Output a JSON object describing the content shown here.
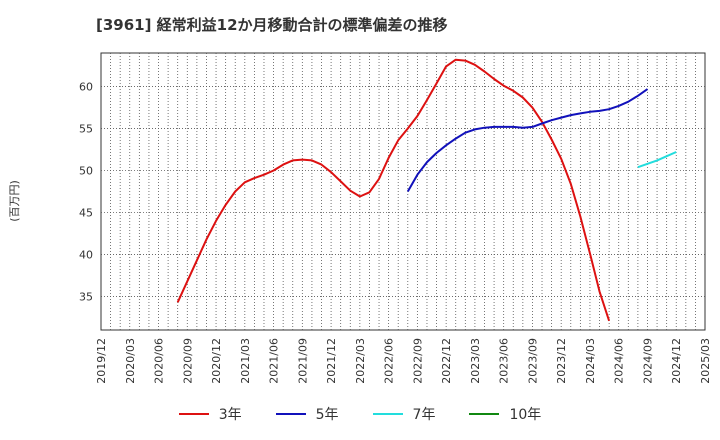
{
  "chart_data": {
    "type": "line",
    "title": "[3961]  経常利益12か月移動合計の標準偏差の推移",
    "ylabel": "(百万円)",
    "xlabel": "",
    "ylim": [
      31,
      64
    ],
    "yticks": [
      35,
      40,
      45,
      50,
      55,
      60
    ],
    "x_range": [
      "2019/12",
      "2025/03"
    ],
    "x_ticks": [
      "2019/12",
      "2020/03",
      "2020/06",
      "2020/09",
      "2020/12",
      "2021/03",
      "2021/06",
      "2021/09",
      "2021/12",
      "2022/03",
      "2022/06",
      "2022/09",
      "2022/12",
      "2023/03",
      "2023/06",
      "2023/09",
      "2023/12",
      "2024/03",
      "2024/06",
      "2024/09",
      "2024/12",
      "2025/03"
    ],
    "grid": true,
    "series": [
      {
        "name": "3年",
        "color": "#dd1111",
        "x": [
          "2020/08",
          "2020/09",
          "2020/10",
          "2020/11",
          "2020/12",
          "2021/01",
          "2021/02",
          "2021/03",
          "2021/04",
          "2021/05",
          "2021/06",
          "2021/07",
          "2021/08",
          "2021/09",
          "2021/10",
          "2021/11",
          "2021/12",
          "2022/01",
          "2022/02",
          "2022/03",
          "2022/04",
          "2022/05",
          "2022/06",
          "2022/07",
          "2022/08",
          "2022/09",
          "2022/10",
          "2022/11",
          "2022/12",
          "2023/01",
          "2023/02",
          "2023/03",
          "2023/04",
          "2023/05",
          "2023/06",
          "2023/07",
          "2023/08",
          "2023/09",
          "2023/10",
          "2023/11",
          "2023/12",
          "2024/01",
          "2024/02",
          "2024/03",
          "2024/04",
          "2024/05",
          "2024/06",
          "2024/07",
          "2024/08",
          "2024/09",
          "2024/10",
          "2024/11",
          "2024/12"
        ],
        "values": [
          34.3,
          36.8,
          39.3,
          41.8,
          44.0,
          45.9,
          47.5,
          48.6,
          49.1,
          49.5,
          50.0,
          50.7,
          51.2,
          51.3,
          51.2,
          50.7,
          49.8,
          48.7,
          47.6,
          46.9,
          47.4,
          49.0,
          51.5,
          53.6,
          55.0,
          56.5,
          58.4,
          60.4,
          62.4,
          63.2,
          63.1,
          62.6,
          61.8,
          60.9,
          60.1,
          59.5,
          58.7,
          57.5,
          55.8,
          53.7,
          51.4,
          48.4,
          44.5,
          40.1,
          35.6,
          32.1,
          null,
          null,
          null,
          null,
          null,
          null,
          null
        ]
      },
      {
        "name": "5年",
        "color": "#1111bb",
        "x": [
          "2022/08",
          "2022/09",
          "2022/10",
          "2022/11",
          "2022/12",
          "2023/01",
          "2023/02",
          "2023/03",
          "2023/04",
          "2023/05",
          "2023/06",
          "2023/07",
          "2023/08",
          "2023/09",
          "2023/10",
          "2023/11",
          "2023/12",
          "2024/01",
          "2024/02",
          "2024/03",
          "2024/04",
          "2024/05",
          "2024/06",
          "2024/07",
          "2024/08",
          "2024/09",
          "2024/10",
          "2024/11",
          "2024/12"
        ],
        "values": [
          47.5,
          49.5,
          51.0,
          52.1,
          53.0,
          53.8,
          54.5,
          54.9,
          55.1,
          55.2,
          55.2,
          55.2,
          55.1,
          55.2,
          55.6,
          56.0,
          56.3,
          56.6,
          56.8,
          57.0,
          57.1,
          57.3,
          57.7,
          58.2,
          58.9,
          59.7,
          null,
          null,
          null
        ]
      },
      {
        "name": "7年",
        "color": "#22dddd",
        "x": [
          "2024/08",
          "2024/09",
          "2024/10",
          "2024/11",
          "2024/12"
        ],
        "values": [
          50.4,
          50.8,
          51.2,
          51.7,
          52.2
        ]
      },
      {
        "name": "10年",
        "color": "#118811",
        "x": [],
        "values": []
      }
    ]
  }
}
